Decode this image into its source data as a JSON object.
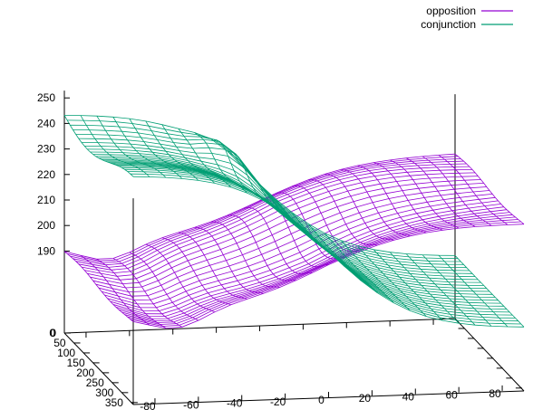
{
  "chart_data": {
    "type": "surface",
    "x_ticks": [
      "-80",
      "-60",
      "-40",
      "-20",
      "0",
      "20",
      "40",
      "60",
      "80"
    ],
    "y_ticks": [
      "0",
      "50",
      "100",
      "150",
      "200",
      "250",
      "300",
      "350"
    ],
    "z_ticks": [
      "190",
      "200",
      "210",
      "220",
      "230",
      "240",
      "250"
    ],
    "xlim": [
      -90,
      90
    ],
    "ylim": [
      0,
      360
    ],
    "zlim": [
      160,
      255
    ],
    "legend_position": "top-right",
    "series": [
      {
        "name": "opposition",
        "color": "#9400d3"
      },
      {
        "name": "conjunction",
        "color": "#009e73"
      }
    ]
  }
}
